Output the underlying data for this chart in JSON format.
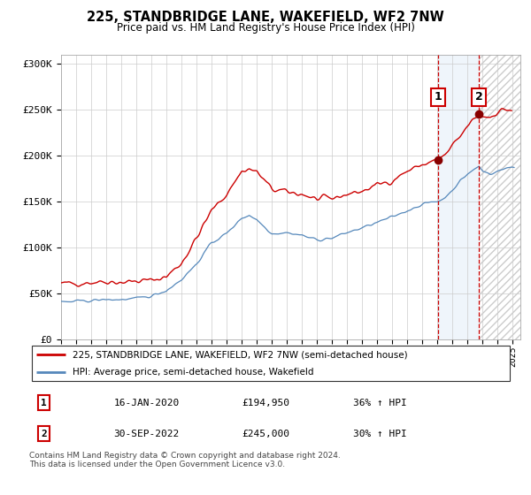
{
  "title": "225, STANDBRIDGE LANE, WAKEFIELD, WF2 7NW",
  "subtitle": "Price paid vs. HM Land Registry's House Price Index (HPI)",
  "ylabel_ticks": [
    "£0",
    "£50K",
    "£100K",
    "£150K",
    "£200K",
    "£250K",
    "£300K"
  ],
  "ytick_values": [
    0,
    50000,
    100000,
    150000,
    200000,
    250000,
    300000
  ],
  "ylim_max": 310000,
  "xlim_start": 1995.0,
  "xlim_end": 2025.5,
  "price_color": "#cc0000",
  "hpi_color": "#5588bb",
  "shade_color": "#ddeeff",
  "marker1_date": 2020.04,
  "marker1_price": 194950,
  "marker1_label": "16-JAN-2020",
  "marker1_text": "£194,950",
  "marker1_hpi": "36% ↑ HPI",
  "marker2_date": 2022.75,
  "marker2_price": 245000,
  "marker2_label": "30-SEP-2022",
  "marker2_text": "£245,000",
  "marker2_hpi": "30% ↑ HPI",
  "legend_label1": "225, STANDBRIDGE LANE, WAKEFIELD, WF2 7NW (semi-detached house)",
  "legend_label2": "HPI: Average price, semi-detached house, Wakefield",
  "footnote": "Contains HM Land Registry data © Crown copyright and database right 2024.\nThis data is licensed under the Open Government Licence v3.0.",
  "xtick_years": [
    1995,
    1996,
    1997,
    1998,
    1999,
    2000,
    2001,
    2002,
    2003,
    2004,
    2005,
    2006,
    2007,
    2008,
    2009,
    2010,
    2011,
    2012,
    2013,
    2014,
    2015,
    2016,
    2017,
    2018,
    2019,
    2020,
    2021,
    2022,
    2023,
    2024,
    2025
  ]
}
